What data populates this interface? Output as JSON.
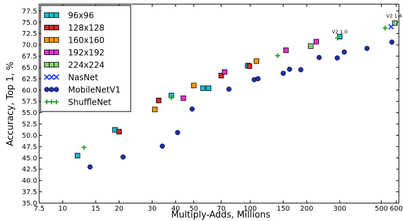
{
  "chart_data": {
    "type": "scatter",
    "xlabel": "Multiply-Adds, Millions",
    "ylabel": "Accuracy, Top 1, %",
    "xscale": "log",
    "xlim": [
      7.5,
      620
    ],
    "ylim": [
      35.0,
      79.0
    ],
    "grid": false,
    "legend_position": "top-left",
    "xticks": [
      7.5,
      10,
      15,
      20,
      30,
      40,
      50,
      70,
      100,
      150,
      200,
      300,
      500,
      600
    ],
    "xtick_labels": [
      "7.5",
      "10",
      "15",
      "20",
      "30",
      "40",
      "50",
      "70",
      "100",
      "150",
      "200",
      "300",
      "500",
      "600"
    ],
    "yticks": [
      35,
      37.5,
      40,
      42.5,
      45,
      47.5,
      50,
      52.5,
      55,
      57.5,
      60,
      62.5,
      65,
      67.5,
      70,
      72.5,
      75,
      77.5
    ],
    "ytick_labels": [
      "35.0",
      "37.5",
      "40.0",
      "42.5",
      "45.0",
      "47.5",
      "50.0",
      "52.5",
      "55.0",
      "57.5",
      "60.0",
      "62.5",
      "65.0",
      "67.5",
      "70.0",
      "72.5",
      "75.0",
      "77.5"
    ],
    "series": [
      {
        "name": "96x96",
        "marker": "square",
        "color": "#17becf",
        "points": [
          [
            12,
            45.5
          ],
          [
            19,
            51.2
          ],
          [
            38,
            58.8
          ],
          [
            56,
            60.4
          ],
          [
            60,
            60.4
          ],
          [
            97,
            65.4
          ],
          [
            300,
            71.8
          ]
        ]
      },
      {
        "name": "128x128",
        "marker": "square",
        "color": "#d62728",
        "points": [
          [
            20,
            50.8
          ],
          [
            32.5,
            57.7
          ],
          [
            70,
            63.2
          ],
          [
            99,
            65.3
          ]
        ]
      },
      {
        "name": "160x160",
        "marker": "square",
        "color": "#ff9900",
        "points": [
          [
            31,
            55.7
          ],
          [
            50,
            61.0
          ],
          [
            108,
            66.4
          ]
        ]
      },
      {
        "name": "192x192",
        "marker": "square",
        "color": "#dd33cc",
        "points": [
          [
            44,
            58.2
          ],
          [
            73,
            64.0
          ],
          [
            155,
            68.8
          ],
          [
            225,
            70.7
          ]
        ]
      },
      {
        "name": "224x224",
        "marker": "square",
        "color": "#88cc77",
        "points": [
          [
            210,
            69.7
          ],
          [
            590,
            74.8
          ]
        ]
      },
      {
        "name": "NasNet",
        "marker": "x",
        "color": "#1f3fff",
        "points": [
          [
            564,
            74.0
          ]
        ]
      },
      {
        "name": "MobileNetV1",
        "marker": "circle",
        "color": "#1f2fa0",
        "points": [
          [
            14,
            43.0
          ],
          [
            21,
            45.2
          ],
          [
            34,
            47.6
          ],
          [
            41,
            50.6
          ],
          [
            49,
            55.8
          ],
          [
            77,
            60.2
          ],
          [
            105,
            62.3
          ],
          [
            110,
            62.5
          ],
          [
            150,
            63.7
          ],
          [
            162,
            64.6
          ],
          [
            186,
            64.5
          ],
          [
            233,
            67.2
          ],
          [
            291,
            67.1
          ],
          [
            317,
            68.4
          ],
          [
            419,
            69.2
          ],
          [
            569,
            70.6
          ]
        ]
      },
      {
        "name": "ShuffleNet",
        "marker": "plus",
        "color": "#2ca02c",
        "points": [
          [
            13,
            47.3
          ],
          [
            38,
            58.3
          ],
          [
            140,
            67.6
          ],
          [
            292,
            71.5
          ],
          [
            524,
            73.7
          ]
        ]
      }
    ],
    "annotations": [
      {
        "text": "V2 1.0",
        "x": 300,
        "y": 71.8
      },
      {
        "text": "V2 1.4",
        "x": 585,
        "y": 75.3
      }
    ],
    "colors": {
      "frame": "#000000",
      "background": "#ffffff"
    }
  }
}
